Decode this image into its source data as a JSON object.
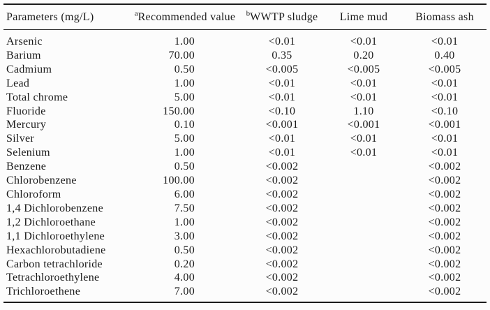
{
  "page": {
    "background": "#fcfcfc",
    "text_color": "#1a1a1a",
    "rule_color": "#1c1c1c"
  },
  "table": {
    "headers": [
      {
        "key": "parameters",
        "sup": "",
        "label": "Parameters (mg/L)"
      },
      {
        "key": "recommended-value",
        "sup": "a",
        "label": "Recommended value"
      },
      {
        "key": "wwtp-sludge",
        "sup": "b",
        "label": "WWTP sludge"
      },
      {
        "key": "lime-mud",
        "sup": "",
        "label": "Lime mud"
      },
      {
        "key": "biomass-ash",
        "sup": "",
        "label": "Biomass ash"
      }
    ],
    "rows": [
      [
        "Arsenic",
        "1.00",
        "<0.01",
        "<0.01",
        "<0.01"
      ],
      [
        "Barium",
        "70.00",
        "0.35",
        "0.20",
        "0.40"
      ],
      [
        "Cadmium",
        "0.50",
        "<0.005",
        "<0.005",
        "<0.005"
      ],
      [
        "Lead",
        "1.00",
        "<0.01",
        "<0.01",
        "<0.01"
      ],
      [
        "Total chrome",
        "5.00",
        "<0.01",
        "<0.01",
        "<0.01"
      ],
      [
        "Fluoride",
        "150.00",
        "<0.10",
        "1.10",
        "<0.10"
      ],
      [
        "Mercury",
        "0.10",
        "<0.001",
        "<0.001",
        "<0.001"
      ],
      [
        "Silver",
        "5.00",
        "<0.01",
        "<0.01",
        "<0.01"
      ],
      [
        "Selenium",
        "1.00",
        "<0.01",
        "<0.01",
        "<0.01"
      ],
      [
        "Benzene",
        "0.50",
        "<0.002",
        "",
        "<0.002"
      ],
      [
        "Chlorobenzene",
        "100.00",
        "<0.002",
        "",
        "<0.002"
      ],
      [
        "Chloroform",
        "6.00",
        "<0.002",
        "",
        "<0.002"
      ],
      [
        "1,4 Dichlorobenzene",
        "7.50",
        "<0.002",
        "",
        "<0.002"
      ],
      [
        "1,2 Dichloroethane",
        "1.00",
        "<0.002",
        "",
        "<0.002"
      ],
      [
        "1,1 Dichloroethylene",
        "3.00",
        "<0.002",
        "",
        "<0.002"
      ],
      [
        "Hexachlorobutadiene",
        "0.50",
        "<0.002",
        "",
        "<0.002"
      ],
      [
        "Carbon tetrachloride",
        "0.20",
        "<0.002",
        "",
        "<0.002"
      ],
      [
        "Tetrachloroethylene",
        "4.00",
        "<0.002",
        "",
        "<0.002"
      ],
      [
        "Trichloroethene",
        "7.00",
        "<0.002",
        "",
        "<0.002"
      ]
    ]
  }
}
